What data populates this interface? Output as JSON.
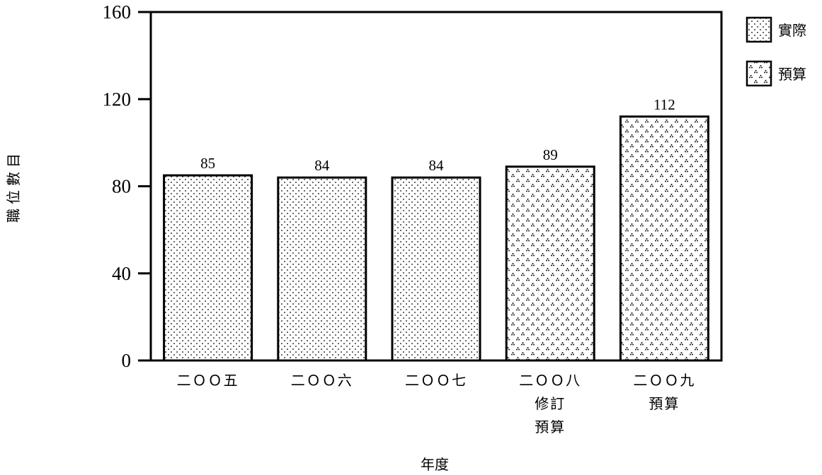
{
  "chart_data": {
    "type": "bar",
    "categories": [
      [
        "二ＯＯ五"
      ],
      [
        "二ＯＯ六"
      ],
      [
        "二ＯＯ七"
      ],
      [
        "二ＯＯ八",
        "修訂",
        "預算"
      ],
      [
        "二ＯＯ九",
        "預算"
      ]
    ],
    "values": [
      85,
      84,
      84,
      89,
      112
    ],
    "series_kind": [
      "實際",
      "實際",
      "實際",
      "預算",
      "預算"
    ],
    "legend": [
      {
        "label": "實際",
        "pattern": "dots"
      },
      {
        "label": "預算",
        "pattern": "triangle-dots"
      }
    ],
    "legend_position": "top-right",
    "xlabel": "年度",
    "ylabel": "職位數目",
    "ylim": [
      0,
      160
    ],
    "yticks": [
      0,
      40,
      80,
      120,
      160
    ],
    "grid": false,
    "colors": {
      "bar_fill": "#ffffff",
      "bar_edge": "#000000",
      "pattern": "#000000"
    }
  }
}
